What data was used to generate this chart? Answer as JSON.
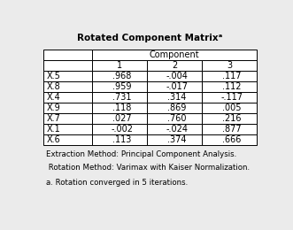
{
  "title": "Rotated Component Matrixᵃ",
  "col_header_main": "Component",
  "col_subheaders": [
    "1",
    "2",
    "3"
  ],
  "row_labels": [
    "X.5",
    "X.8",
    "X.4",
    "X.9",
    "X.7",
    "X.1",
    "X.6"
  ],
  "table_data": [
    [
      ".968",
      "-.004",
      ".117"
    ],
    [
      ".959",
      "-.017",
      ".112"
    ],
    [
      ".731",
      ".314",
      "-.117"
    ],
    [
      ".118",
      ".869",
      ".005"
    ],
    [
      ".027",
      ".760",
      ".216"
    ],
    [
      "-.002",
      "-.024",
      ".877"
    ],
    [
      ".113",
      ".374",
      ".666"
    ]
  ],
  "footnote1": "Extraction Method: Principal Component Analysis.",
  "footnote2": " Rotation Method: Varimax with Kaiser Normalization.",
  "footnote3": "a. Rotation converged in 5 iterations.",
  "bg_color": "#ebebeb",
  "border_color": "#000000",
  "title_fontsize": 7.5,
  "body_fontsize": 7.0,
  "footnote_fontsize": 6.2
}
